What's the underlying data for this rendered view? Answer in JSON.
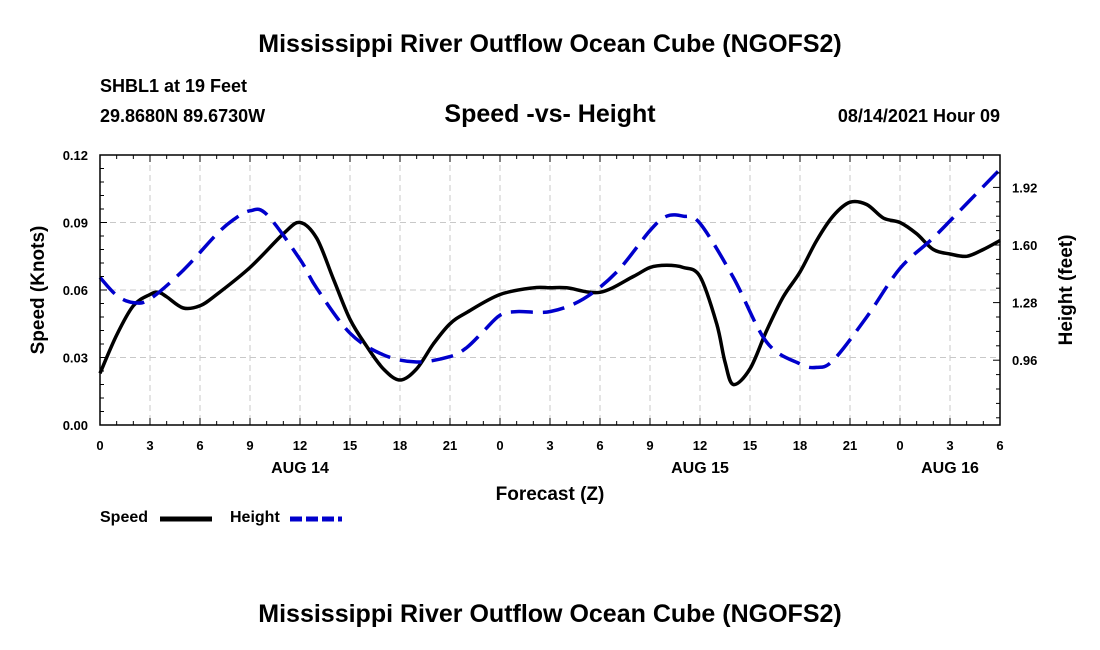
{
  "header": {
    "title_top": "Mississippi River Outflow Ocean Cube (NGOFS2)",
    "station": "SHBL1 at 19 Feet",
    "coords": "29.8680N  89.6730W",
    "subtitle": "Speed -vs- Height",
    "datestamp": "08/14/2021 Hour 09"
  },
  "footer": {
    "title_bottom": "Mississippi River Outflow Ocean Cube (NGOFS2)"
  },
  "legend": {
    "speed_label": "Speed",
    "height_label": "Height"
  },
  "colors": {
    "speed": "#000000",
    "height": "#0000cc",
    "grid": "#c8c8c8"
  },
  "chart_data": {
    "type": "line",
    "xlabel": "Forecast (Z)",
    "ylabel_left": "Speed (Knots)",
    "ylabel_right": "Height (feet)",
    "x_range_hours": [
      0,
      54
    ],
    "x_ticks": [
      {
        "h": 0,
        "label": "0"
      },
      {
        "h": 3,
        "label": "3"
      },
      {
        "h": 6,
        "label": "6"
      },
      {
        "h": 9,
        "label": "9"
      },
      {
        "h": 12,
        "label": "12"
      },
      {
        "h": 15,
        "label": "15"
      },
      {
        "h": 18,
        "label": "18"
      },
      {
        "h": 21,
        "label": "21"
      },
      {
        "h": 24,
        "label": "0"
      },
      {
        "h": 27,
        "label": "3"
      },
      {
        "h": 30,
        "label": "6"
      },
      {
        "h": 33,
        "label": "9"
      },
      {
        "h": 36,
        "label": "12"
      },
      {
        "h": 39,
        "label": "15"
      },
      {
        "h": 42,
        "label": "18"
      },
      {
        "h": 45,
        "label": "21"
      },
      {
        "h": 48,
        "label": "0"
      },
      {
        "h": 51,
        "label": "3"
      },
      {
        "h": 54,
        "label": "6"
      }
    ],
    "date_labels": [
      {
        "h": 12,
        "label": "AUG 14"
      },
      {
        "h": 36,
        "label": "AUG 15"
      },
      {
        "h": 51,
        "label": "AUG 16"
      }
    ],
    "ylim_left": [
      0,
      0.12
    ],
    "yticks_left": [
      "0.00",
      "0.03",
      "0.06",
      "0.09",
      "0.12"
    ],
    "ylim_right": [
      0.6,
      2.1
    ],
    "yticks_right": [
      {
        "v": 0.96,
        "label": "0.96"
      },
      {
        "v": 1.28,
        "label": "1.28"
      },
      {
        "v": 1.6,
        "label": "1.60"
      },
      {
        "v": 1.92,
        "label": "1.92"
      }
    ],
    "series": [
      {
        "name": "Speed",
        "axis": "left",
        "style": "solid",
        "x": [
          0,
          1,
          2,
          3,
          3.5,
          4,
          5,
          6,
          7,
          9,
          11,
          12,
          13,
          14,
          15,
          16,
          17,
          18,
          19,
          20,
          21,
          22,
          24,
          26,
          27,
          28,
          30,
          32,
          33,
          34,
          35,
          36,
          37,
          37.5,
          38,
          39,
          40,
          41,
          42,
          43,
          44,
          45,
          46,
          47,
          48,
          49,
          50,
          51,
          52,
          53,
          54
        ],
        "values": [
          0.023,
          0.04,
          0.053,
          0.058,
          0.059,
          0.057,
          0.052,
          0.053,
          0.058,
          0.07,
          0.085,
          0.09,
          0.083,
          0.065,
          0.047,
          0.035,
          0.025,
          0.02,
          0.025,
          0.036,
          0.045,
          0.05,
          0.058,
          0.061,
          0.061,
          0.061,
          0.059,
          0.066,
          0.07,
          0.071,
          0.07,
          0.066,
          0.045,
          0.028,
          0.018,
          0.025,
          0.042,
          0.057,
          0.068,
          0.082,
          0.093,
          0.099,
          0.098,
          0.092,
          0.09,
          0.085,
          0.078,
          0.076,
          0.075,
          0.078,
          0.082
        ]
      },
      {
        "name": "Height",
        "axis": "right",
        "style": "dashed",
        "x": [
          0,
          1,
          2,
          3,
          5,
          7,
          8,
          9,
          10,
          12,
          13,
          15,
          17,
          19,
          21,
          22,
          23,
          24,
          25,
          27,
          29,
          31,
          33,
          34,
          35,
          36,
          38,
          40,
          42,
          43,
          44,
          46,
          48,
          50,
          52,
          54
        ],
        "values": [
          1.42,
          1.32,
          1.28,
          1.3,
          1.46,
          1.66,
          1.74,
          1.79,
          1.77,
          1.52,
          1.36,
          1.11,
          0.99,
          0.95,
          0.98,
          1.03,
          1.12,
          1.21,
          1.23,
          1.23,
          1.3,
          1.45,
          1.68,
          1.76,
          1.76,
          1.72,
          1.42,
          1.06,
          0.94,
          0.92,
          0.96,
          1.2,
          1.47,
          1.64,
          1.83,
          2.02
        ]
      }
    ]
  }
}
